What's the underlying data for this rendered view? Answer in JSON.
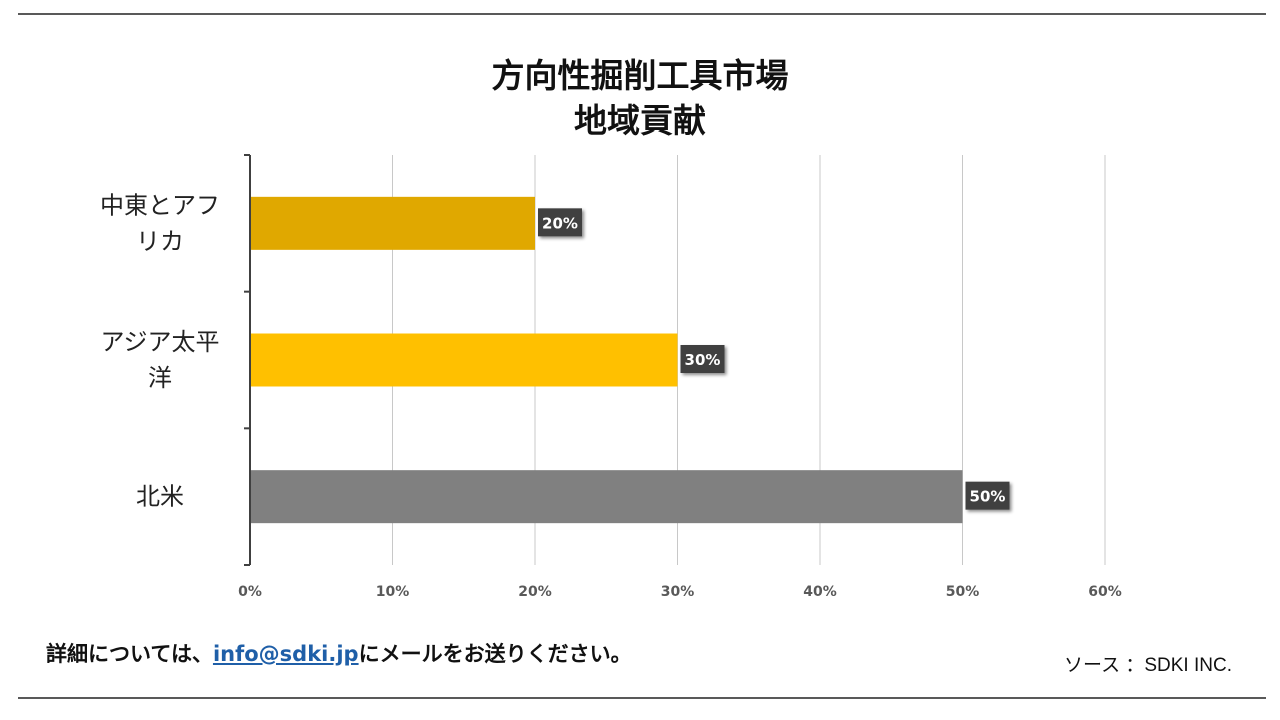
{
  "chart_data": {
    "type": "bar",
    "orientation": "horizontal",
    "title_lines": [
      "方向性掘削工具市場",
      "地域貢献"
    ],
    "categories": [
      {
        "label_lines": [
          "中東とアフ",
          "リカ"
        ],
        "value": 20,
        "color": "#E0A800"
      },
      {
        "label_lines": [
          "アジア太平",
          "洋"
        ],
        "value": 30,
        "color": "#FFC000"
      },
      {
        "label_lines": [
          "北米"
        ],
        "value": 50,
        "color": "#808080"
      }
    ],
    "data_labels": [
      "20%",
      "30%",
      "50%"
    ],
    "x_ticks": [
      "0%",
      "10%",
      "20%",
      "30%",
      "40%",
      "50%",
      "60%"
    ],
    "xlim": [
      0,
      60
    ],
    "grid": true,
    "legend": "none"
  },
  "footer": {
    "prefix": "詳細については、",
    "email": "info@sdki.jp",
    "suffix": "にメールをお送りください。",
    "source": "ソース ：SDKI INC."
  }
}
